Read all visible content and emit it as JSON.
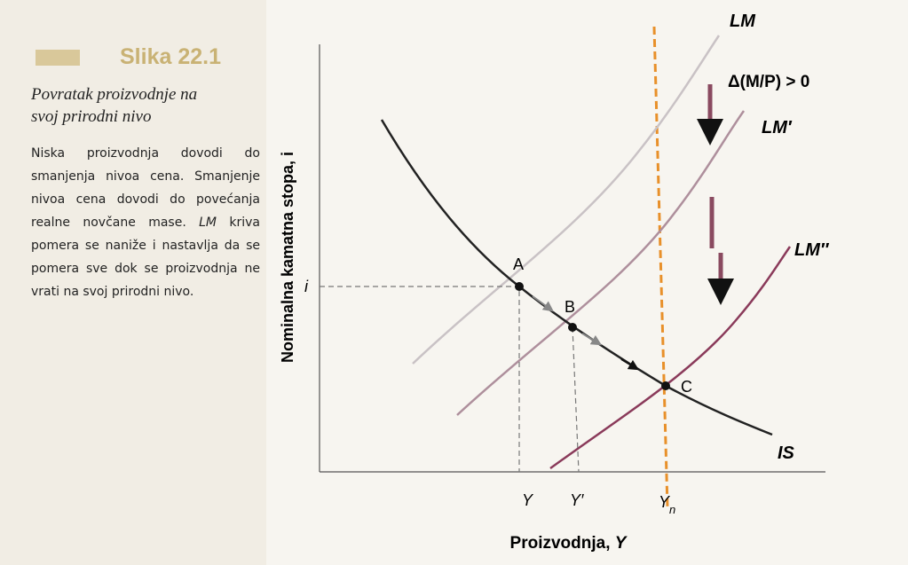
{
  "figure": {
    "label": "Slika 22.1",
    "title_lines": [
      "Povratak proizvodnje na",
      "svoj prirodni nivo"
    ],
    "caption_parts": [
      "Niska proizvodnja dovodi do smanjenja nivoa cena. Smanjenje nivoa cena dovodi do povećanja realne novčane mase. ",
      "LM",
      " kriva pomera se naniže i nastavlja da se pomera sve dok se proizvodnja ne vrati na svoj prirodni nivo."
    ]
  },
  "diagram": {
    "y_axis_label": "Nominalna kamatna stopa, i",
    "x_axis_label_parts": [
      "Proizvodnja, ",
      "Y"
    ],
    "curves": {
      "lm": "LM",
      "lm1": "LM′",
      "lm2": "LM″",
      "is": "IS"
    },
    "shift_label": "Δ(M/P) > 0",
    "points": {
      "a": "A",
      "b": "B",
      "c": "C"
    },
    "y_mark": "i",
    "x_marks": {
      "y": "Y",
      "y1": "Y′",
      "yn_base": "Y",
      "yn_sub": "n"
    }
  }
}
